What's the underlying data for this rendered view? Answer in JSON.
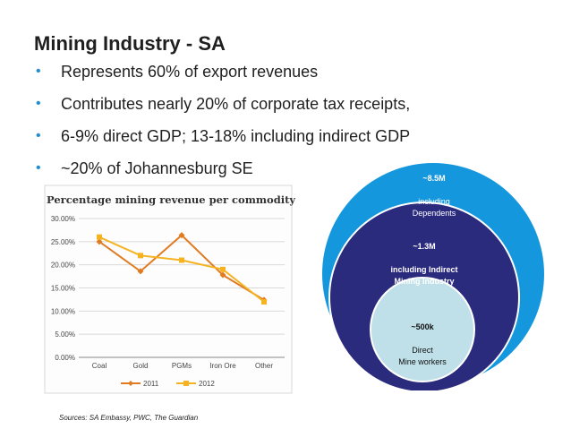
{
  "slide": {
    "title": "Mining Industry - SA",
    "bullets": [
      "Represents 60% of export revenues",
      "Contributes nearly 20% of corporate tax receipts,",
      "6-9% direct GDP; 13-18% including indirect GDP",
      "~20% of Johannesburg SE"
    ],
    "bullet_color": "#1f8fcf",
    "source": "Sources: SA Embassy, PWC, The Guardian"
  },
  "chart_data": {
    "type": "line",
    "title": "Percentage mining revenue per commodity",
    "categories": [
      "Coal",
      "Gold",
      "PGMs",
      "Iron Ore",
      "Other"
    ],
    "y_ticks": [
      "0.00%",
      "5.00%",
      "10.00%",
      "15.00%",
      "20.00%",
      "25.00%",
      "30.00%"
    ],
    "ylim": [
      0,
      30
    ],
    "grid": true,
    "legend": "bottom",
    "series": [
      {
        "name": "2011",
        "color": "#e07b22",
        "marker": "diamond",
        "values": [
          25.0,
          18.6,
          26.4,
          17.8,
          12.4
        ]
      },
      {
        "name": "2012",
        "color": "#f5b321",
        "marker": "square",
        "values": [
          26.0,
          22.0,
          21.0,
          19.0,
          12.0
        ]
      }
    ]
  },
  "circles": {
    "outer": {
      "value": "~8.5M",
      "label": "including\nDependents",
      "color": "#1597dd"
    },
    "middle": {
      "value": "~1.3M",
      "label": "including Indirect\nMining Industry",
      "color": "#2b2b7d"
    },
    "inner": {
      "value": "~500k",
      "label": "Direct\nMine workers",
      "color": "#bfe0e8"
    }
  }
}
